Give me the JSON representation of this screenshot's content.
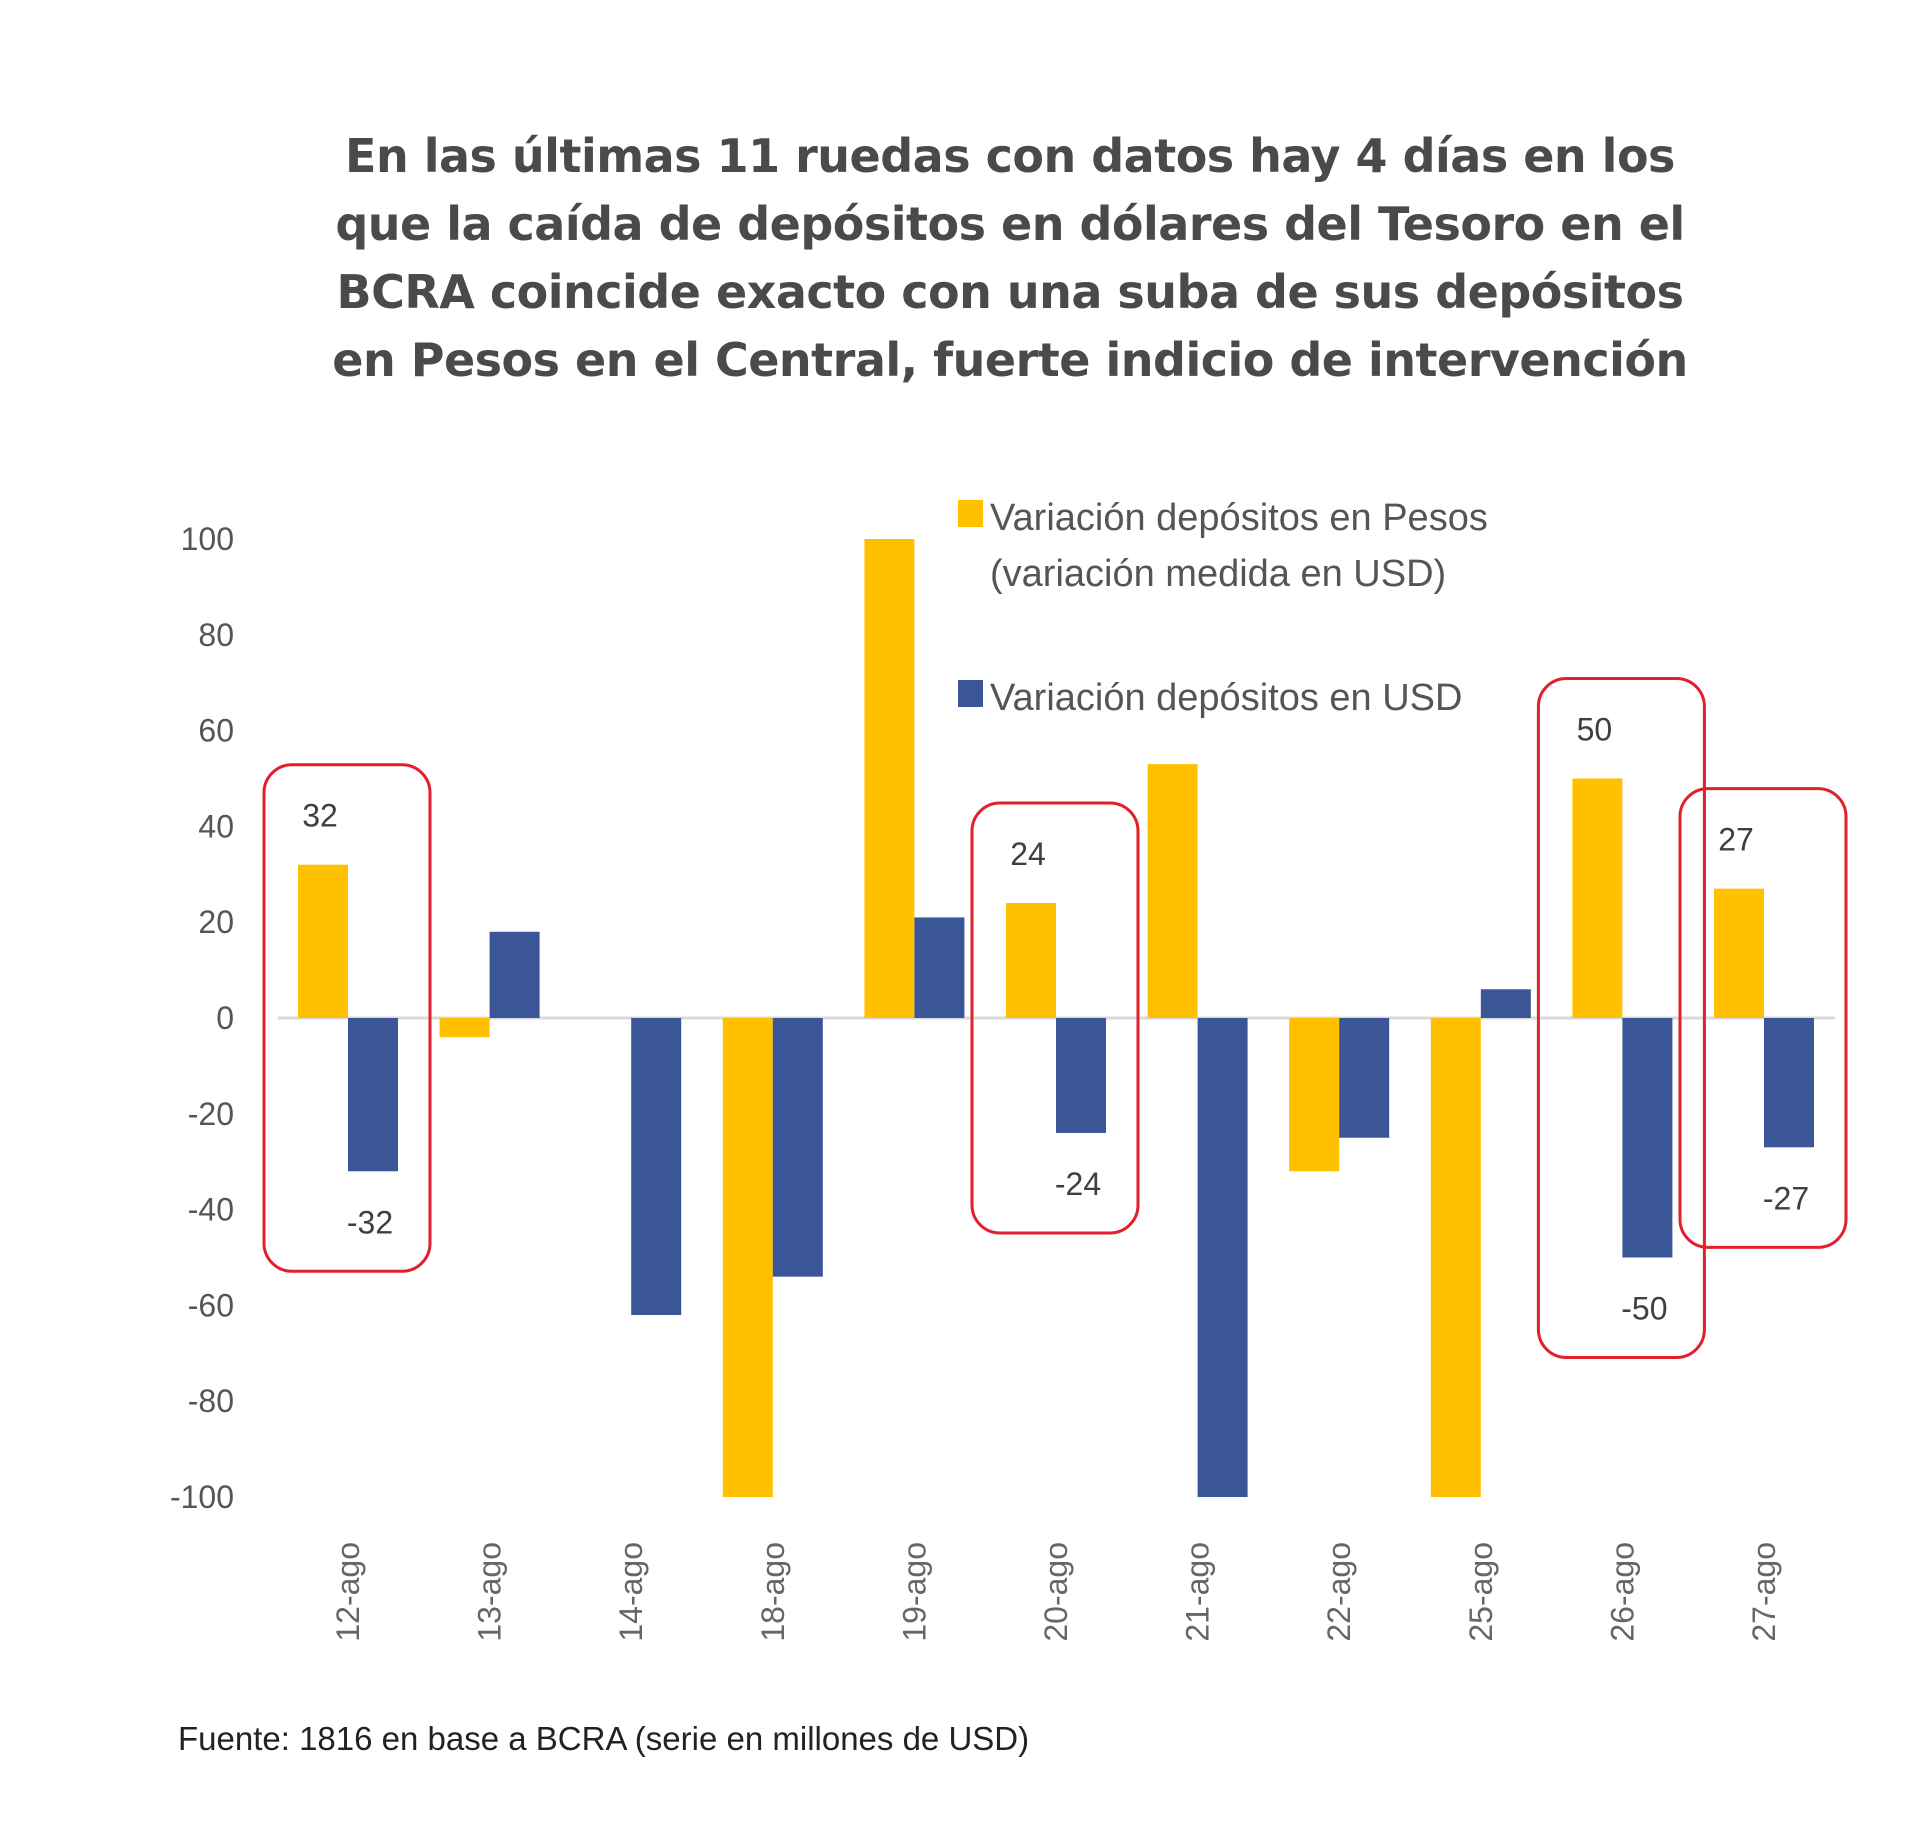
{
  "title_lines": [
    "En las últimas 11 ruedas con datos hay 4 días en los",
    "que la caída de depósitos en dólares del Tesoro en el",
    "BCRA coincide exacto con una suba de sus depósitos",
    "en Pesos en el Central, fuerte indicio de intervención"
  ],
  "footer": "Fuente: 1816 en base a BCRA (serie en millones de USD)",
  "chart_data": {
    "type": "bar",
    "title": "En las últimas 11 ruedas con datos hay 4 días en los que la caída de depósitos en dólares del Tesoro en el BCRA coincide exacto con una suba de sus depósitos en Pesos en el Central, fuerte indicio de intervención",
    "xlabel": "",
    "ylabel": "",
    "ylim": [
      -100,
      100
    ],
    "yticks": [
      100,
      80,
      60,
      40,
      20,
      0,
      -20,
      -40,
      -60,
      -80,
      -100
    ],
    "grid": false,
    "legend_position": "top-right",
    "categories": [
      "12-ago",
      "13-ago",
      "14-ago",
      "18-ago",
      "19-ago",
      "20-ago",
      "21-ago",
      "22-ago",
      "25-ago",
      "26-ago",
      "27-ago"
    ],
    "series": [
      {
        "name": "Variación depósitos en Pesos (variación medida en USD)",
        "legend_lines": [
          "Variación depósitos en Pesos",
          "(variación medida en USD)"
        ],
        "color": "#FFC000",
        "values": [
          32,
          -4,
          0,
          -100,
          100,
          24,
          53,
          -32,
          -100,
          50,
          27
        ]
      },
      {
        "name": "Variación depósitos en USD",
        "legend_lines": [
          "Variación depósitos en USD"
        ],
        "color": "#3B5696",
        "values": [
          -32,
          18,
          -62,
          -54,
          21,
          -24,
          -100,
          -25,
          6,
          -50,
          -27
        ]
      }
    ],
    "annotations": [
      {
        "category": "12-ago",
        "pesos_label": "32",
        "usd_label": "-32",
        "highlight": true
      },
      {
        "category": "20-ago",
        "pesos_label": "24",
        "usd_label": "-24",
        "highlight": true
      },
      {
        "category": "26-ago",
        "pesos_label": "50",
        "usd_label": "-50",
        "highlight": true
      },
      {
        "category": "27-ago",
        "pesos_label": "27",
        "usd_label": "-27",
        "highlight": true
      }
    ],
    "highlight_color": "#E0202A"
  }
}
